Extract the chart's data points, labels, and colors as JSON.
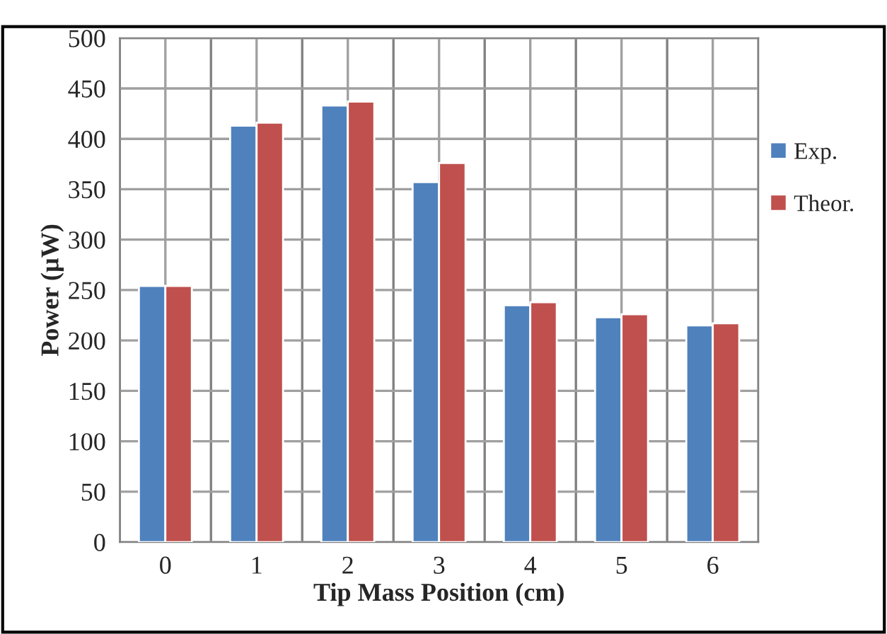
{
  "chart_data": {
    "type": "bar",
    "xlabel": "Tip Mass Position (cm)",
    "ylabel": "Power (µW)",
    "categories": [
      "0",
      "1",
      "2",
      "3",
      "4",
      "5",
      "6"
    ],
    "series": [
      {
        "name": "Exp.",
        "color": "#4f81bd",
        "values": [
          254,
          413,
          433,
          357,
          235,
          223,
          215
        ]
      },
      {
        "name": "Theor.",
        "color": "#c0504d",
        "values": [
          254,
          416,
          437,
          376,
          238,
          226,
          217
        ]
      }
    ],
    "ylim": [
      0,
      500
    ],
    "yticks": [
      0,
      50,
      100,
      150,
      200,
      250,
      300,
      350,
      400,
      450,
      500
    ],
    "grid": true,
    "legend": "right"
  }
}
